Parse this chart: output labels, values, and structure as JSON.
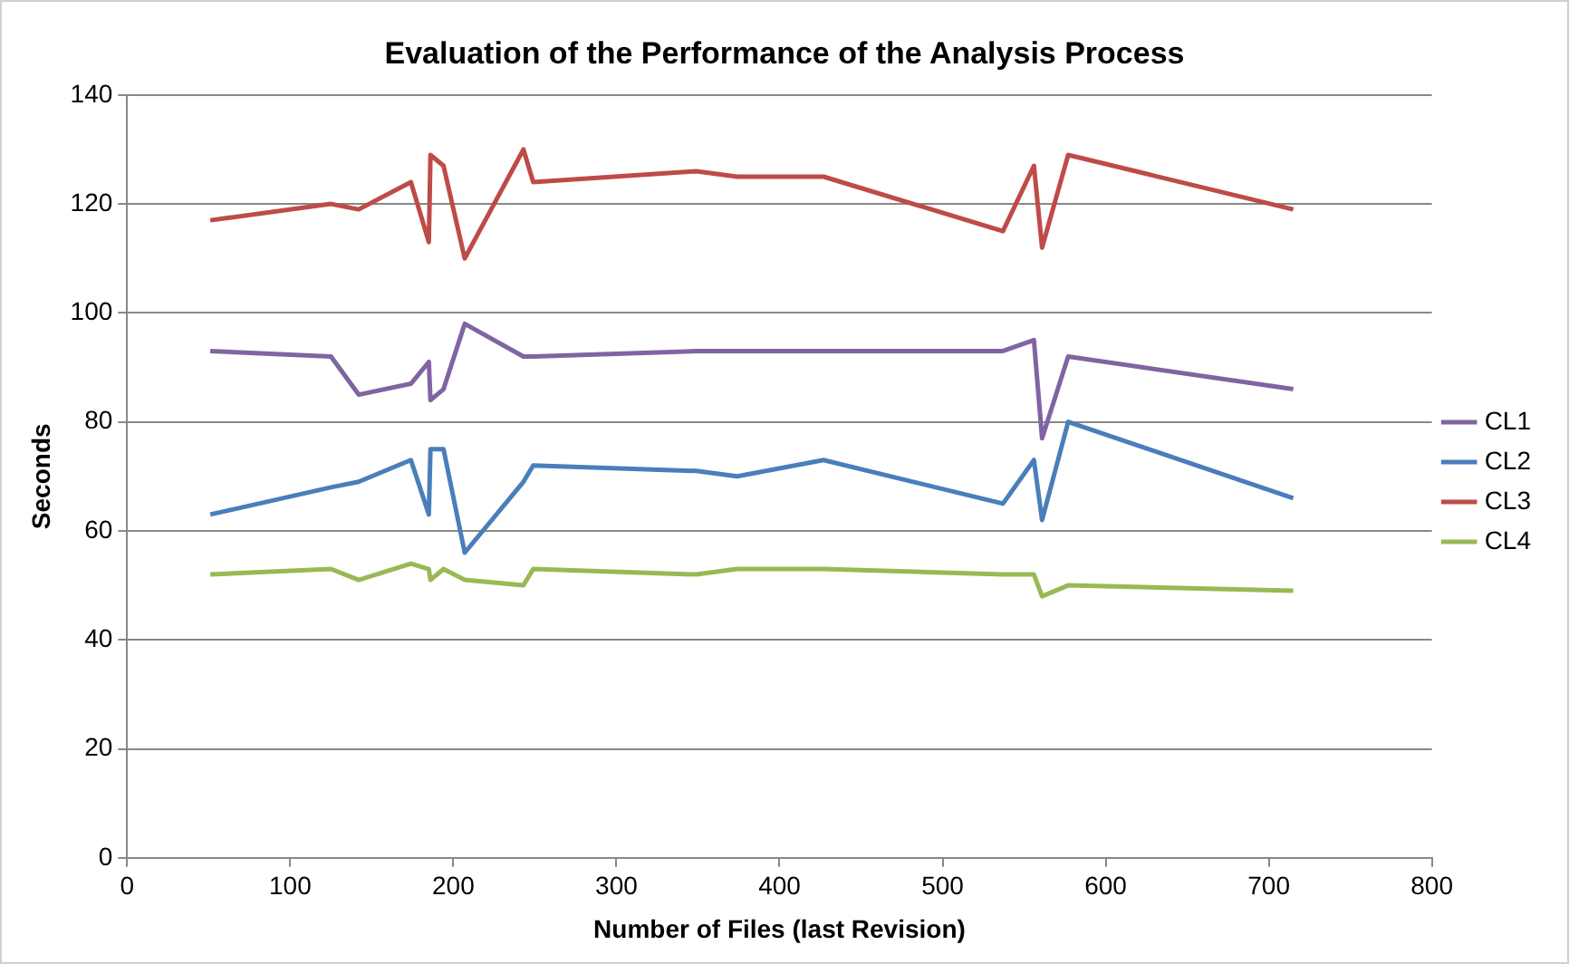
{
  "chart_data": {
    "type": "line",
    "title": "Evaluation of the Performance of the Analysis Process",
    "xlabel": "Number of Files (last Revision)",
    "ylabel": "Seconds",
    "x": [
      51,
      125,
      142,
      174,
      185,
      186,
      194,
      207,
      243,
      249,
      349,
      374,
      427,
      537,
      556,
      561,
      577,
      715
    ],
    "series": [
      {
        "name": "CL1",
        "color": "#8064a2",
        "values": [
          93,
          92,
          85,
          87,
          91,
          84,
          86,
          98,
          92,
          92,
          93,
          93,
          93,
          93,
          95,
          77,
          92,
          86
        ]
      },
      {
        "name": "CL2",
        "color": "#4a7ebb",
        "values": [
          63,
          68,
          69,
          73,
          63,
          75,
          75,
          56,
          69,
          72,
          71,
          70,
          73,
          65,
          73,
          62,
          80,
          66
        ]
      },
      {
        "name": "CL3",
        "color": "#be4b48",
        "values": [
          117,
          120,
          119,
          124,
          113,
          129,
          127,
          110,
          130,
          124,
          126,
          125,
          125,
          115,
          127,
          112,
          129,
          119
        ]
      },
      {
        "name": "CL4",
        "color": "#98b954",
        "values": [
          52,
          53,
          51,
          54,
          53,
          51,
          53,
          51,
          50,
          53,
          52,
          53,
          53,
          52,
          52,
          48,
          50,
          49
        ]
      }
    ],
    "xlim": [
      0,
      800
    ],
    "xticks": [
      0,
      100,
      200,
      300,
      400,
      500,
      600,
      700,
      800
    ],
    "ylim": [
      0,
      140
    ],
    "yticks": [
      0,
      20,
      40,
      60,
      80,
      100,
      120,
      140
    ],
    "grid": "y",
    "legend": "right",
    "marker": "none",
    "line_style": "solid"
  }
}
